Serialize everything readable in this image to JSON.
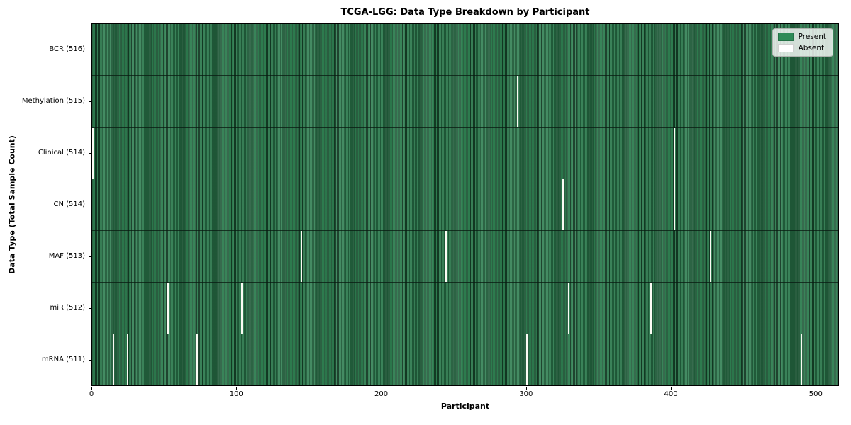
{
  "figure": {
    "title": "TCGA-LGG: Data Type Breakdown by Participant",
    "xlabel": "Participant",
    "ylabel": "Data Type (Total Sample Count)"
  },
  "legend": {
    "items": [
      {
        "label": "Present",
        "color": "#2e8b57"
      },
      {
        "label": "Absent",
        "color": "#ffffff"
      }
    ]
  },
  "chart_data": {
    "type": "heatmap",
    "title": "TCGA-LGG: Data Type Breakdown by Participant",
    "xlabel": "Participant",
    "ylabel": "Data Type (Total Sample Count)",
    "x_range": [
      0,
      516
    ],
    "x_ticks": [
      0,
      100,
      200,
      300,
      400,
      500
    ],
    "n_participants": 516,
    "grid": false,
    "legend_position": "upper right",
    "value_encoding": {
      "present": 1,
      "absent": 0
    },
    "rows": [
      {
        "label": "BCR (516)",
        "data_type": "BCR",
        "total_samples": 516,
        "absent_participants": []
      },
      {
        "label": "Methylation (515)",
        "data_type": "Methylation",
        "total_samples": 515,
        "absent_participants": [
          294
        ]
      },
      {
        "label": "Clinical (514)",
        "data_type": "Clinical",
        "total_samples": 514,
        "absent_participants": [
          0,
          402
        ]
      },
      {
        "label": "CN (514)",
        "data_type": "CN",
        "total_samples": 514,
        "absent_participants": [
          325,
          402
        ]
      },
      {
        "label": "MAF (513)",
        "data_type": "MAF",
        "total_samples": 513,
        "absent_participants": [
          144,
          244,
          427
        ]
      },
      {
        "label": "miR (512)",
        "data_type": "miR",
        "total_samples": 512,
        "absent_participants": [
          52,
          103,
          329,
          386
        ]
      },
      {
        "label": "mRNA (511)",
        "data_type": "mRNA",
        "total_samples": 511,
        "absent_participants": [
          14,
          24,
          72,
          300,
          490
        ]
      }
    ],
    "colors": {
      "present": "#2e8b57",
      "absent": "#fbfbf4",
      "row_divider": "#0d2418",
      "axes_border": "#000000"
    }
  }
}
